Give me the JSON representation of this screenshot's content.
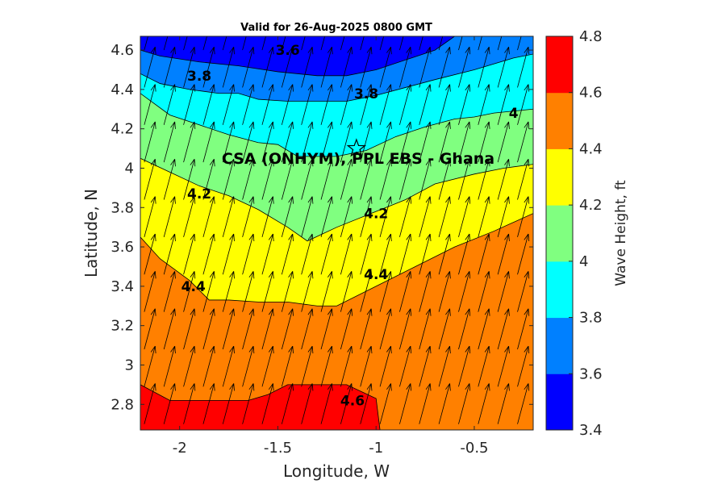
{
  "chart_data": {
    "type": "filled-contour-with-vectors",
    "title": "Valid for 26-Aug-2025 0800 GMT",
    "xlabel": "Longitude, W",
    "ylabel": "Latitude, N",
    "xlim": [
      -2.2,
      -0.2
    ],
    "ylim": [
      2.67,
      4.67
    ],
    "xticks": [
      -2,
      -1.5,
      -1,
      -0.5
    ],
    "xtick_labels": [
      "-2",
      "-1.5",
      "-1",
      "-0.5"
    ],
    "yticks": [
      2.8,
      3,
      3.2,
      3.4,
      3.6,
      3.8,
      4,
      4.2,
      4.4,
      4.6
    ],
    "ytick_labels": [
      "2.8",
      "3",
      "3.2",
      "3.4",
      "3.6",
      "3.8",
      "4",
      "4.2",
      "4.4",
      "4.6"
    ],
    "colorbar": {
      "label": "Wave Height, ft",
      "levels": [
        3.4,
        3.6,
        3.8,
        4.0,
        4.2,
        4.4,
        4.6,
        4.8
      ],
      "tick_labels": [
        "3.4",
        "3.6",
        "3.8",
        "4",
        "4.2",
        "4.4",
        "4.6",
        "4.8"
      ],
      "colors": [
        "#0000ff",
        "#0080ff",
        "#00ffff",
        "#80ff80",
        "#ffff00",
        "#ff8000",
        "#ff0000"
      ]
    },
    "contours": [
      {
        "level": 3.6,
        "points": [
          [
            -2.2,
            4.6
          ],
          [
            -2.1,
            4.57
          ],
          [
            -1.9,
            4.54
          ],
          [
            -1.7,
            4.52
          ],
          [
            -1.5,
            4.49
          ],
          [
            -1.3,
            4.47
          ],
          [
            -1.15,
            4.47
          ],
          [
            -1.0,
            4.5
          ],
          [
            -0.85,
            4.55
          ],
          [
            -0.7,
            4.6
          ],
          [
            -0.6,
            4.67
          ]
        ]
      },
      {
        "level": 3.8,
        "points": [
          [
            -2.2,
            4.48
          ],
          [
            -2.1,
            4.43
          ],
          [
            -1.95,
            4.4
          ],
          [
            -1.8,
            4.38
          ],
          [
            -1.7,
            4.38
          ],
          [
            -1.6,
            4.35
          ],
          [
            -1.45,
            4.34
          ],
          [
            -1.3,
            4.34
          ],
          [
            -1.15,
            4.34
          ],
          [
            -1.0,
            4.37
          ],
          [
            -0.85,
            4.41
          ],
          [
            -0.7,
            4.45
          ],
          [
            -0.5,
            4.5
          ],
          [
            -0.3,
            4.56
          ],
          [
            -0.2,
            4.58
          ]
        ]
      },
      {
        "level": 4.0,
        "points": [
          [
            -2.2,
            4.38
          ],
          [
            -2.05,
            4.27
          ],
          [
            -1.9,
            4.22
          ],
          [
            -1.75,
            4.17
          ],
          [
            -1.6,
            4.13
          ],
          [
            -1.5,
            4.12
          ],
          [
            -1.4,
            4.06
          ],
          [
            -1.2,
            4.06
          ],
          [
            -1.05,
            4.09
          ],
          [
            -0.9,
            4.16
          ],
          [
            -0.75,
            4.21
          ],
          [
            -0.6,
            4.25
          ],
          [
            -0.5,
            4.26
          ],
          [
            -0.4,
            4.28
          ],
          [
            -0.2,
            4.3
          ]
        ]
      },
      {
        "level": 4.2,
        "points": [
          [
            -2.2,
            4.05
          ],
          [
            -2.05,
            3.98
          ],
          [
            -1.9,
            3.91
          ],
          [
            -1.75,
            3.86
          ],
          [
            -1.6,
            3.79
          ],
          [
            -1.45,
            3.7
          ],
          [
            -1.35,
            3.63
          ],
          [
            -1.2,
            3.7
          ],
          [
            -1.0,
            3.78
          ],
          [
            -0.85,
            3.84
          ],
          [
            -0.7,
            3.92
          ],
          [
            -0.5,
            3.97
          ],
          [
            -0.35,
            4.0
          ],
          [
            -0.2,
            4.02
          ]
        ]
      },
      {
        "level": 4.4,
        "points": [
          [
            -2.2,
            3.65
          ],
          [
            -2.1,
            3.54
          ],
          [
            -1.95,
            3.43
          ],
          [
            -1.85,
            3.33
          ],
          [
            -1.75,
            3.33
          ],
          [
            -1.6,
            3.32
          ],
          [
            -1.45,
            3.32
          ],
          [
            -1.3,
            3.3
          ],
          [
            -1.2,
            3.3
          ],
          [
            -1.0,
            3.4
          ],
          [
            -0.8,
            3.5
          ],
          [
            -0.6,
            3.6
          ],
          [
            -0.4,
            3.68
          ],
          [
            -0.2,
            3.77
          ]
        ]
      },
      {
        "level": 4.6,
        "points": [
          [
            -2.2,
            2.9
          ],
          [
            -2.05,
            2.82
          ],
          [
            -1.9,
            2.82
          ],
          [
            -1.75,
            2.82
          ],
          [
            -1.65,
            2.82
          ],
          [
            -1.55,
            2.85
          ],
          [
            -1.45,
            2.9
          ],
          [
            -1.3,
            2.9
          ],
          [
            -1.15,
            2.9
          ],
          [
            -1.0,
            2.83
          ],
          [
            -0.98,
            2.67
          ]
        ]
      }
    ],
    "contour_labels": [
      {
        "text": "3.6",
        "lon": -1.45,
        "lat": 4.6
      },
      {
        "text": "3.8",
        "lon": -1.9,
        "lat": 4.47
      },
      {
        "text": "3.8",
        "lon": -1.05,
        "lat": 4.38
      },
      {
        "text": "4",
        "lon": -0.3,
        "lat": 4.28
      },
      {
        "text": "4.2",
        "lon": -1.9,
        "lat": 3.87
      },
      {
        "text": "4.2",
        "lon": -1.0,
        "lat": 3.77
      },
      {
        "text": "4.4",
        "lon": -1.93,
        "lat": 3.4
      },
      {
        "text": "4.4",
        "lon": -1.0,
        "lat": 3.46
      },
      {
        "text": "4.6",
        "lon": -1.12,
        "lat": 2.82
      }
    ],
    "site": {
      "name": "CSA (ONHYM), PPL EBS  - Ghana",
      "lon": -1.1,
      "lat": 4.1
    },
    "vectors": {
      "lon_start": -2.18,
      "lon_step": 0.1,
      "lon_count": 20,
      "lat_start": 2.7,
      "lat_step": 0.19,
      "lat_count": 11,
      "direction_deg_from_north": 15
    }
  }
}
